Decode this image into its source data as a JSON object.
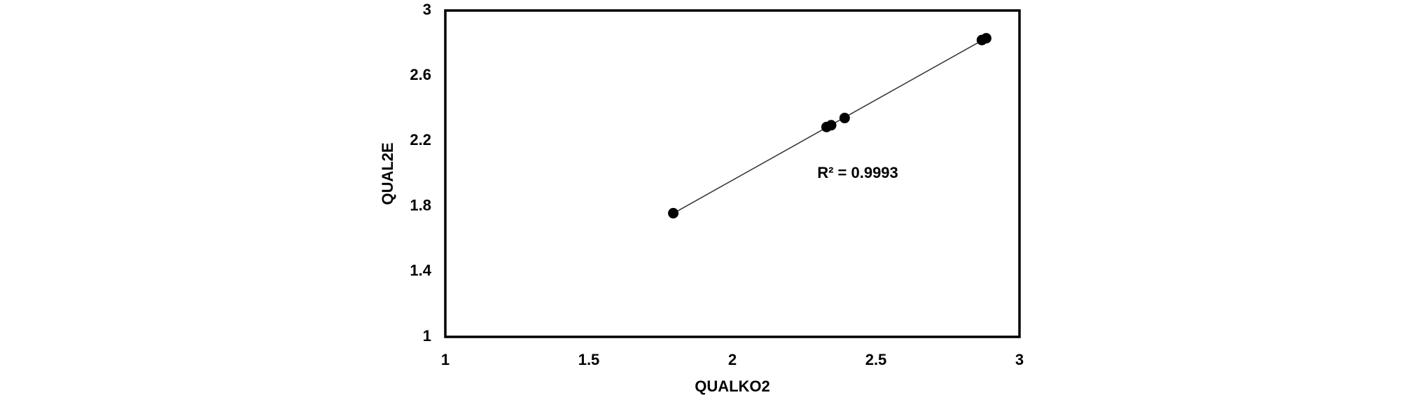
{
  "chart_data": {
    "type": "scatter",
    "x_label": "QUALKO2",
    "y_label": "QUAL2E",
    "annotation": "R² = 0.9993",
    "x": [
      1.794,
      2.328,
      2.344,
      2.391,
      2.869,
      2.884
    ],
    "series": [
      {
        "name": "QUAL2E",
        "color": "#000000",
        "values": [
          1.758,
          2.286,
          2.297,
          2.341,
          2.819,
          2.83
        ]
      }
    ],
    "trendline": true,
    "xlim": [
      1,
      3
    ],
    "xticks": [
      1,
      1.5,
      2,
      2.5,
      3
    ],
    "ylim": [
      1,
      3
    ],
    "yticks": [
      1,
      1.4,
      1.8,
      2.2,
      2.6,
      3
    ]
  }
}
